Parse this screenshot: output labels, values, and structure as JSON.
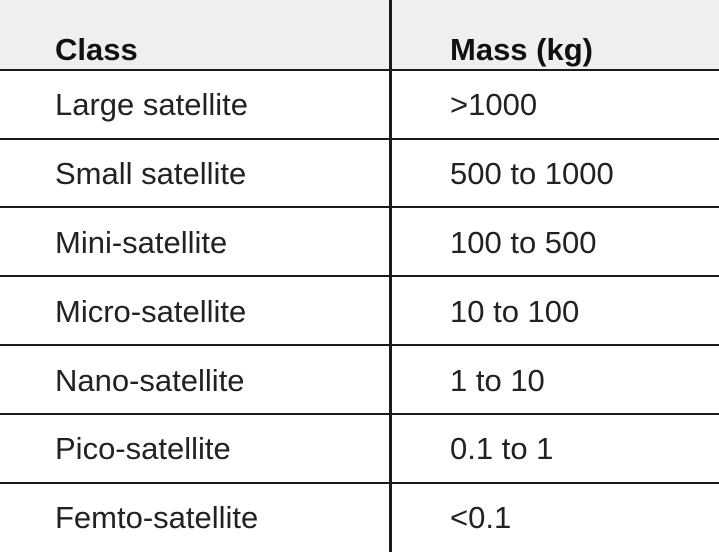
{
  "table": {
    "headers": {
      "class": "Class",
      "mass": "Mass (kg)"
    },
    "rows": [
      {
        "class": "Large satellite",
        "mass": ">1000"
      },
      {
        "class": "Small satellite",
        "mass": "500 to 1000"
      },
      {
        "class": "Mini-satellite",
        "mass": "100 to 500"
      },
      {
        "class": "Micro-satellite",
        "mass": "10 to 100"
      },
      {
        "class": "Nano-satellite",
        "mass": "1 to 10"
      },
      {
        "class": "Pico-satellite",
        "mass": "0.1 to 1"
      },
      {
        "class": "Femto-satellite",
        "mass": "<0.1"
      }
    ]
  }
}
